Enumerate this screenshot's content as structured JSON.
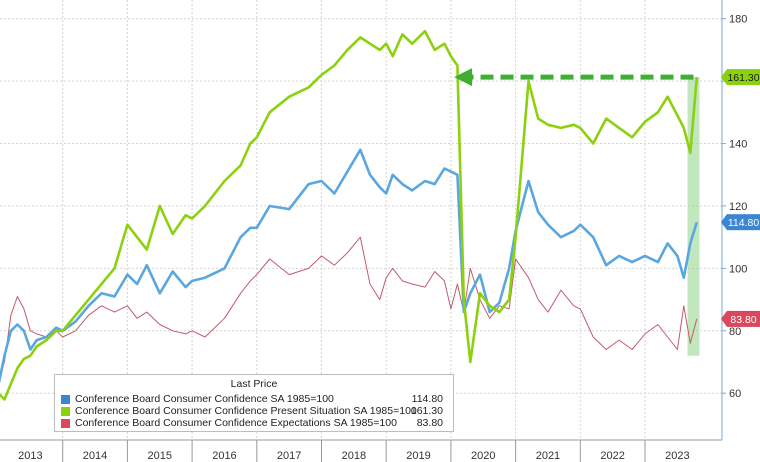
{
  "chart_data": {
    "type": "line",
    "title": "",
    "xlabel": "",
    "ylabel": "",
    "x_tick_labels": [
      "2013",
      "2014",
      "2015",
      "2016",
      "2017",
      "2018",
      "2019",
      "2020",
      "2021",
      "2022",
      "2023"
    ],
    "y_tick_values": [
      60,
      80,
      100,
      120,
      140,
      160,
      180
    ],
    "xlim": [
      2013.0,
      2023.85
    ],
    "ylim": [
      45,
      186
    ],
    "grid": true,
    "legend_position": "bottom-left",
    "legend_title": "Last Price",
    "series": [
      {
        "name": "Conference Board Consumer Confidence SA 1985=100",
        "color": "#5aa7df",
        "last_label": "114.80",
        "last_value": 114.8,
        "x": [
          2013.0,
          2013.1,
          2013.2,
          2013.3,
          2013.4,
          2013.5,
          2013.6,
          2013.75,
          2013.9,
          2014.0,
          2014.2,
          2014.4,
          2014.6,
          2014.8,
          2015.0,
          2015.15,
          2015.3,
          2015.5,
          2015.7,
          2015.9,
          2016.0,
          2016.2,
          2016.5,
          2016.75,
          2016.9,
          2017.0,
          2017.2,
          2017.5,
          2017.8,
          2018.0,
          2018.2,
          2018.4,
          2018.6,
          2018.75,
          2018.9,
          2019.0,
          2019.1,
          2019.25,
          2019.4,
          2019.6,
          2019.75,
          2019.9,
          2020.0,
          2020.1,
          2020.2,
          2020.3,
          2020.45,
          2020.6,
          2020.75,
          2020.9,
          2021.0,
          2021.2,
          2021.35,
          2021.5,
          2021.7,
          2021.9,
          2022.0,
          2022.2,
          2022.4,
          2022.6,
          2022.8,
          2023.0,
          2023.2,
          2023.35,
          2023.5,
          2023.6,
          2023.7,
          2023.8
        ],
        "y": [
          62,
          72,
          80,
          82,
          80,
          74,
          77,
          78,
          81,
          80,
          83,
          88,
          92,
          91,
          98,
          95,
          101,
          92,
          99,
          94,
          96,
          97,
          100,
          110,
          113,
          113,
          120,
          119,
          127,
          128,
          124,
          131,
          138,
          130,
          126,
          124,
          130,
          127,
          125,
          128,
          127,
          132,
          131,
          130,
          86,
          92,
          98,
          86,
          89,
          100,
          112,
          128,
          118,
          114,
          110,
          112,
          114,
          110,
          101,
          104,
          102,
          104,
          102,
          108,
          104,
          97,
          108,
          114.8
        ]
      },
      {
        "name": "Conference Board Consumer Confidence Present Situation SA 1985=100",
        "color": "#8cd10e",
        "last_label": "161.30",
        "last_value": 161.3,
        "x": [
          2013.0,
          2013.1,
          2013.2,
          2013.3,
          2013.4,
          2013.5,
          2013.6,
          2013.75,
          2013.9,
          2014.0,
          2014.2,
          2014.4,
          2014.6,
          2014.8,
          2015.0,
          2015.15,
          2015.3,
          2015.5,
          2015.7,
          2015.9,
          2016.0,
          2016.2,
          2016.5,
          2016.75,
          2016.9,
          2017.0,
          2017.2,
          2017.5,
          2017.8,
          2018.0,
          2018.2,
          2018.4,
          2018.6,
          2018.75,
          2018.9,
          2019.0,
          2019.1,
          2019.25,
          2019.4,
          2019.6,
          2019.75,
          2019.9,
          2020.0,
          2020.1,
          2020.2,
          2020.3,
          2020.45,
          2020.6,
          2020.75,
          2020.9,
          2021.0,
          2021.2,
          2021.35,
          2021.5,
          2021.7,
          2021.9,
          2022.0,
          2022.2,
          2022.4,
          2022.6,
          2022.8,
          2023.0,
          2023.2,
          2023.35,
          2023.5,
          2023.6,
          2023.7,
          2023.8
        ],
        "y": [
          60,
          58,
          63,
          68,
          71,
          72,
          75,
          77,
          80,
          80,
          85,
          90,
          95,
          100,
          114,
          110,
          106,
          120,
          111,
          117,
          116,
          120,
          128,
          133,
          140,
          142,
          150,
          155,
          158,
          162,
          165,
          170,
          174,
          172,
          170,
          172,
          168,
          175,
          172,
          176,
          170,
          172,
          168,
          165,
          90,
          70,
          92,
          88,
          86,
          90,
          110,
          160,
          148,
          146,
          145,
          146,
          145,
          140,
          148,
          145,
          142,
          147,
          150,
          155,
          149,
          145,
          137,
          161.3
        ]
      },
      {
        "name": "Conference Board Consumer Confidence Expectations SA 1985=100",
        "color": "#c25a6a",
        "last_label": "83.80",
        "last_value": 83.8,
        "x": [
          2013.0,
          2013.1,
          2013.2,
          2013.3,
          2013.4,
          2013.5,
          2013.6,
          2013.75,
          2013.9,
          2014.0,
          2014.2,
          2014.4,
          2014.6,
          2014.8,
          2015.0,
          2015.15,
          2015.3,
          2015.5,
          2015.7,
          2015.9,
          2016.0,
          2016.2,
          2016.5,
          2016.75,
          2016.9,
          2017.0,
          2017.2,
          2017.5,
          2017.8,
          2018.0,
          2018.2,
          2018.4,
          2018.6,
          2018.75,
          2018.9,
          2019.0,
          2019.1,
          2019.25,
          2019.4,
          2019.6,
          2019.75,
          2019.9,
          2020.0,
          2020.1,
          2020.2,
          2020.3,
          2020.45,
          2020.6,
          2020.75,
          2020.9,
          2021.0,
          2021.2,
          2021.35,
          2021.5,
          2021.7,
          2021.9,
          2022.0,
          2022.2,
          2022.4,
          2022.6,
          2022.8,
          2023.0,
          2023.2,
          2023.35,
          2023.5,
          2023.6,
          2023.7,
          2023.8
        ],
        "y": [
          64,
          70,
          85,
          91,
          87,
          80,
          79,
          78,
          80,
          78,
          80,
          85,
          88,
          86,
          88,
          84,
          86,
          82,
          80,
          79,
          80,
          78,
          84,
          92,
          96,
          98,
          103,
          98,
          100,
          104,
          101,
          105,
          110,
          95,
          90,
          97,
          100,
          96,
          95,
          94,
          99,
          96,
          87,
          95,
          86,
          100,
          90,
          84,
          88,
          87,
          103,
          97,
          90,
          86,
          93,
          88,
          87,
          78,
          74,
          77,
          74,
          79,
          82,
          78,
          74,
          88,
          76,
          83.8
        ]
      }
    ],
    "annotations": {
      "arrow_label": "161.30",
      "arrow_from_x": 2023.75,
      "arrow_to_x": 2020.05,
      "arrow_y": 161.3,
      "band_x": 2023.75,
      "band_y_range": [
        72,
        161.3
      ],
      "arrow_color": "#3fae33"
    }
  }
}
